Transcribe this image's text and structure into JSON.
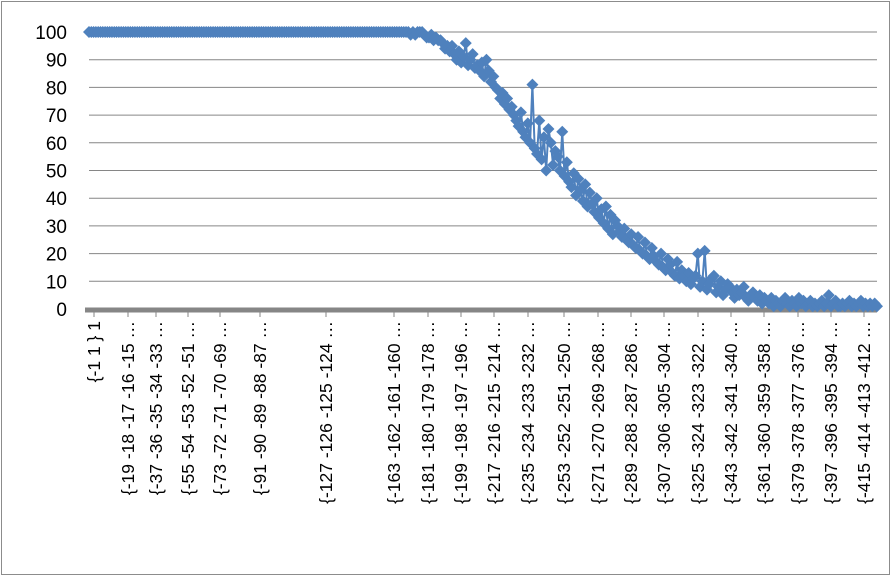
{
  "chart_data": {
    "type": "line",
    "title": "",
    "xlabel": "",
    "ylabel": "",
    "ylim": [
      0,
      100
    ],
    "yticks": [
      0,
      10,
      20,
      30,
      40,
      50,
      60,
      70,
      80,
      90,
      100
    ],
    "grid": "horizontal",
    "legend": "none",
    "marker": "diamond",
    "colors": {
      "series": "#4f81bd",
      "grid": "#868686",
      "axis": "#868686"
    },
    "x_tick_labels": [
      "{-1 1 } 1",
      "{-19 -18 -17 -16 -15 …",
      "{-37 -36 -35 -34 -33 …",
      "{-55 -54 -53 -52 -51 …",
      "{-73 -72 -71 -70 -69 …",
      "{-91 -90 -89 -88 -87 …",
      "{-127 -126 -125 -124 …",
      "{-163 -162 -161 -160 …",
      "{-181 -180 -179 -178 …",
      "{-199 -198 -197 -196 …",
      "{-217 -216 -215 -214 …",
      "{-235 -234 -233 -232 …",
      "{-253 -252 -251 -250 …",
      "{-271 -270 -269 -268 …",
      "{-289 -288 -287 -286 …",
      "{-307 -306 -305 -304 …",
      "{-325 -324 -323 -322 …",
      "{-343 -342 -341 -340 …",
      "{-361 -360 -359 -358 …",
      "{-379 -378 -377 -376 …",
      "{-397 -396 -395 -394 …",
      "{-415 -414 -413 -412 …"
    ],
    "series": [
      {
        "values": [
          100,
          100,
          100,
          100,
          100,
          100,
          100,
          100,
          100,
          100,
          100,
          100,
          100,
          100,
          100,
          100,
          100,
          100,
          100,
          100,
          100,
          100,
          100,
          100,
          100,
          100,
          100,
          100,
          100,
          100,
          100,
          100,
          100,
          100,
          100,
          100,
          100,
          100,
          100,
          100,
          100,
          100,
          100,
          100,
          100,
          100,
          100,
          100,
          100,
          100,
          100,
          100,
          100,
          100,
          100,
          100,
          100,
          100,
          100,
          100,
          100,
          100,
          100,
          100,
          100,
          100,
          100,
          100,
          100,
          100,
          100,
          100,
          100,
          100,
          100,
          100,
          100,
          100,
          100,
          100,
          100,
          100,
          100,
          100,
          100,
          100,
          100,
          100,
          100,
          100,
          100,
          100,
          100,
          100,
          100,
          100,
          100,
          100,
          100,
          100,
          100,
          100,
          100,
          100,
          100,
          100,
          100,
          100,
          100,
          100,
          100,
          100,
          100,
          100,
          100,
          100,
          100,
          100,
          100,
          100,
          100,
          100,
          100,
          100,
          100,
          100,
          100,
          100,
          100,
          100,
          100,
          100,
          100,
          100,
          100,
          100,
          100,
          100,
          100,
          100,
          99,
          100,
          99,
          100,
          100,
          100,
          99,
          98,
          98,
          99,
          97,
          98,
          97,
          97,
          96,
          94,
          95,
          93,
          95,
          92,
          90,
          93,
          89,
          91,
          96,
          88,
          90,
          92,
          87,
          88,
          86,
          89,
          84,
          90,
          86,
          82,
          84,
          80,
          79,
          76,
          78,
          74,
          76,
          72,
          73,
          70,
          68,
          66,
          71,
          64,
          62,
          67,
          60,
          81,
          58,
          56,
          68,
          54,
          62,
          50,
          65,
          60,
          52,
          57,
          55,
          50,
          64,
          48,
          53,
          46,
          44,
          49,
          41,
          47,
          43,
          39,
          45,
          37,
          42,
          38,
          35,
          40,
          33,
          36,
          31,
          37,
          29,
          34,
          27,
          32,
          30,
          28,
          26,
          29,
          25,
          24,
          27,
          23,
          22,
          26,
          21,
          20,
          24,
          19,
          18,
          22,
          19,
          17,
          16,
          20,
          15,
          14,
          18,
          16,
          13,
          12,
          17,
          11,
          14,
          12,
          10,
          13,
          9,
          11,
          12,
          20,
          8,
          10,
          21,
          7,
          9,
          11,
          12,
          6,
          8,
          10,
          5,
          7,
          9,
          8,
          6,
          4,
          7,
          5,
          6,
          8,
          4,
          3,
          5,
          6,
          4,
          3,
          5,
          2,
          4,
          3,
          2,
          4,
          1,
          3,
          2,
          1,
          3,
          4,
          2,
          1,
          3,
          2,
          1,
          4,
          2,
          3,
          1,
          2,
          3,
          1,
          2,
          1,
          2,
          3,
          1,
          2,
          5,
          1,
          2,
          3,
          1,
          1,
          2,
          1,
          2,
          3,
          1,
          2,
          1,
          2,
          3,
          1,
          2,
          1,
          2,
          1,
          2,
          1
        ]
      }
    ]
  }
}
